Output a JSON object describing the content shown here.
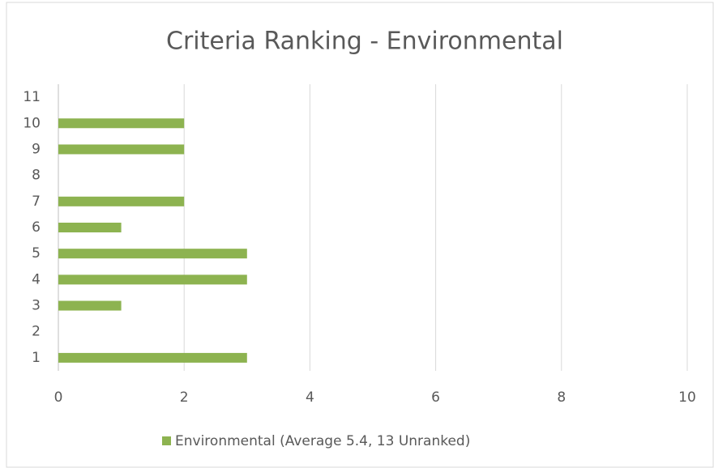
{
  "chart_data": {
    "type": "bar",
    "orientation": "horizontal",
    "title": "Criteria Ranking - Environmental",
    "categories": [
      "1",
      "2",
      "3",
      "4",
      "5",
      "6",
      "7",
      "8",
      "9",
      "10",
      "11"
    ],
    "series": [
      {
        "name": "Environmental (Average 5.4, 13 Unranked)",
        "color": "#8db350",
        "values": [
          3,
          0,
          1,
          3,
          3,
          1,
          2,
          0,
          2,
          2,
          0
        ]
      }
    ],
    "xlim": [
      0,
      10
    ],
    "xticks": [
      0,
      2,
      4,
      6,
      8,
      10
    ],
    "grid": true,
    "legend": "bottom"
  }
}
